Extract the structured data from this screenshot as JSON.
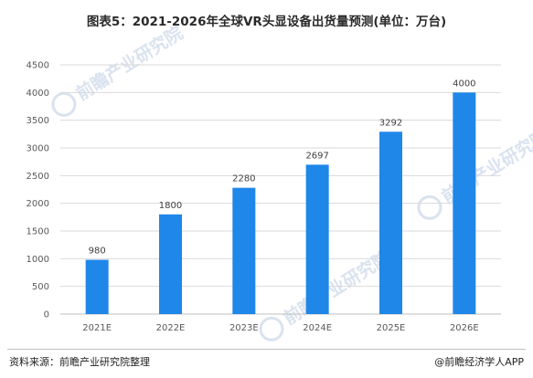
{
  "chart_data": {
    "type": "bar",
    "title": "图表5：2021-2026年全球VR头显设备出货量预测(单位：万台)",
    "categories": [
      "2021E",
      "2022E",
      "2023E",
      "2024E",
      "2025E",
      "2026E"
    ],
    "values": [
      980,
      1800,
      2280,
      2697,
      3292,
      4000
    ],
    "data_labels": [
      "980",
      "1800",
      "2280",
      "2697",
      "3292",
      "4000"
    ],
    "y_ticks": [
      "0",
      "500",
      "1000",
      "1500",
      "2000",
      "2500",
      "3000",
      "3500",
      "4000",
      "4500"
    ],
    "ylim": [
      0,
      4500
    ],
    "xlabel": "",
    "ylabel": "",
    "grid": true,
    "bar_color": "#1f87e8",
    "grid_color": "#d9d9d9"
  },
  "footer": {
    "source": "资料来源：前瞻产业研究院整理",
    "brand": "@前瞻经济学人APP"
  },
  "watermark": "前瞻产业研究院"
}
